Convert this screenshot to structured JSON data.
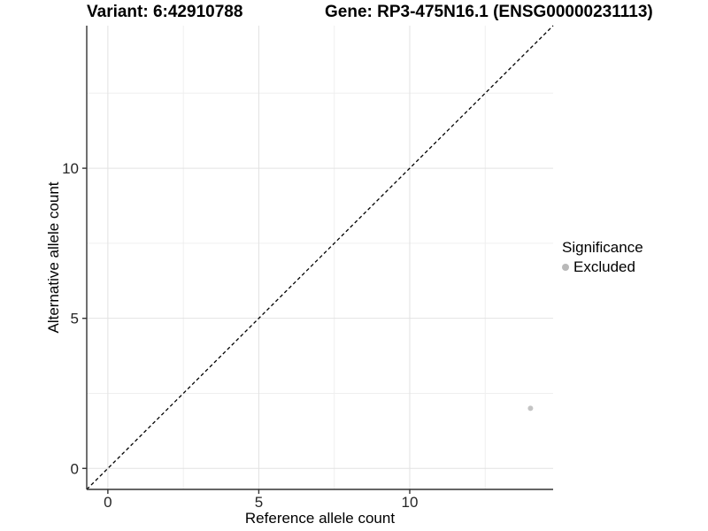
{
  "chart_data": {
    "type": "scatter",
    "title_left": "Variant: 6:42910788",
    "title_right": "Gene: RP3-475N16.1 (ENSG00000231113)",
    "xlabel": "Reference allele count",
    "ylabel": "Alternative allele count",
    "xlim": [
      -0.7,
      14.75
    ],
    "ylim": [
      -0.7,
      14.75
    ],
    "x_major_ticks": [
      0,
      5,
      10
    ],
    "y_major_ticks": [
      0,
      5,
      10
    ],
    "x_minor_ticks": [
      2.5,
      7.5,
      12.5
    ],
    "y_minor_ticks": [
      2.5,
      7.5,
      12.5
    ],
    "grid": {
      "major": true,
      "minor": true
    },
    "reference_line": {
      "kind": "identity y=x",
      "style": "dashed",
      "color": "#000000"
    },
    "series": [
      {
        "name": "Excluded",
        "marker_color": "#c4c4c4",
        "marker_radius_px": 3,
        "points": [
          [
            14,
            2
          ]
        ]
      }
    ],
    "legend": {
      "position": "right",
      "title": "Significance",
      "entries": [
        {
          "label": "Excluded",
          "marker_color": "#b9b9b9"
        }
      ]
    },
    "colors": {
      "background": "#ffffff",
      "axis_line": "#333333",
      "grid_major": "#e2e2e2",
      "grid_minor": "#efefef",
      "tick_label": "#262626"
    }
  }
}
